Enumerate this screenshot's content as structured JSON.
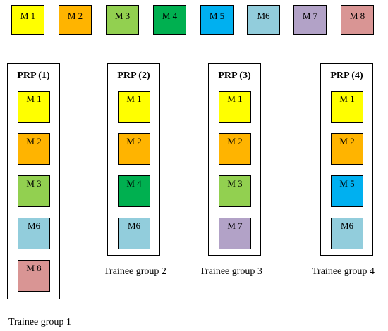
{
  "colors": {
    "M1": "#ffff00",
    "M2": "#ffb400",
    "M3": "#92d050",
    "M4": "#00b050",
    "M5": "#00b0f0",
    "M6": "#92cddc",
    "M7": "#b2a2c7",
    "M8": "#d99594"
  },
  "legend": [
    "M 1",
    "M 2",
    "M 3",
    "M 4",
    "M 5",
    "M6",
    "M 7",
    "M 8"
  ],
  "groups": [
    {
      "title": "PRP (1)",
      "modules": [
        "M 1",
        "M 2",
        "M 3",
        "M6",
        "M 8"
      ],
      "caption": "Trainee group 1"
    },
    {
      "title": "PRP (2)",
      "modules": [
        "M 1",
        "M 2",
        "M 4",
        "M6"
      ],
      "caption": "Trainee group 2"
    },
    {
      "title": "PRP (3)",
      "modules": [
        "M 1",
        "M 2",
        "M 3",
        "M 7"
      ],
      "caption": "Trainee group 3"
    },
    {
      "title": "PRP (4)",
      "modules": [
        "M 1",
        "M 2",
        "M 5",
        "M6"
      ],
      "caption": "Trainee group 4"
    }
  ]
}
